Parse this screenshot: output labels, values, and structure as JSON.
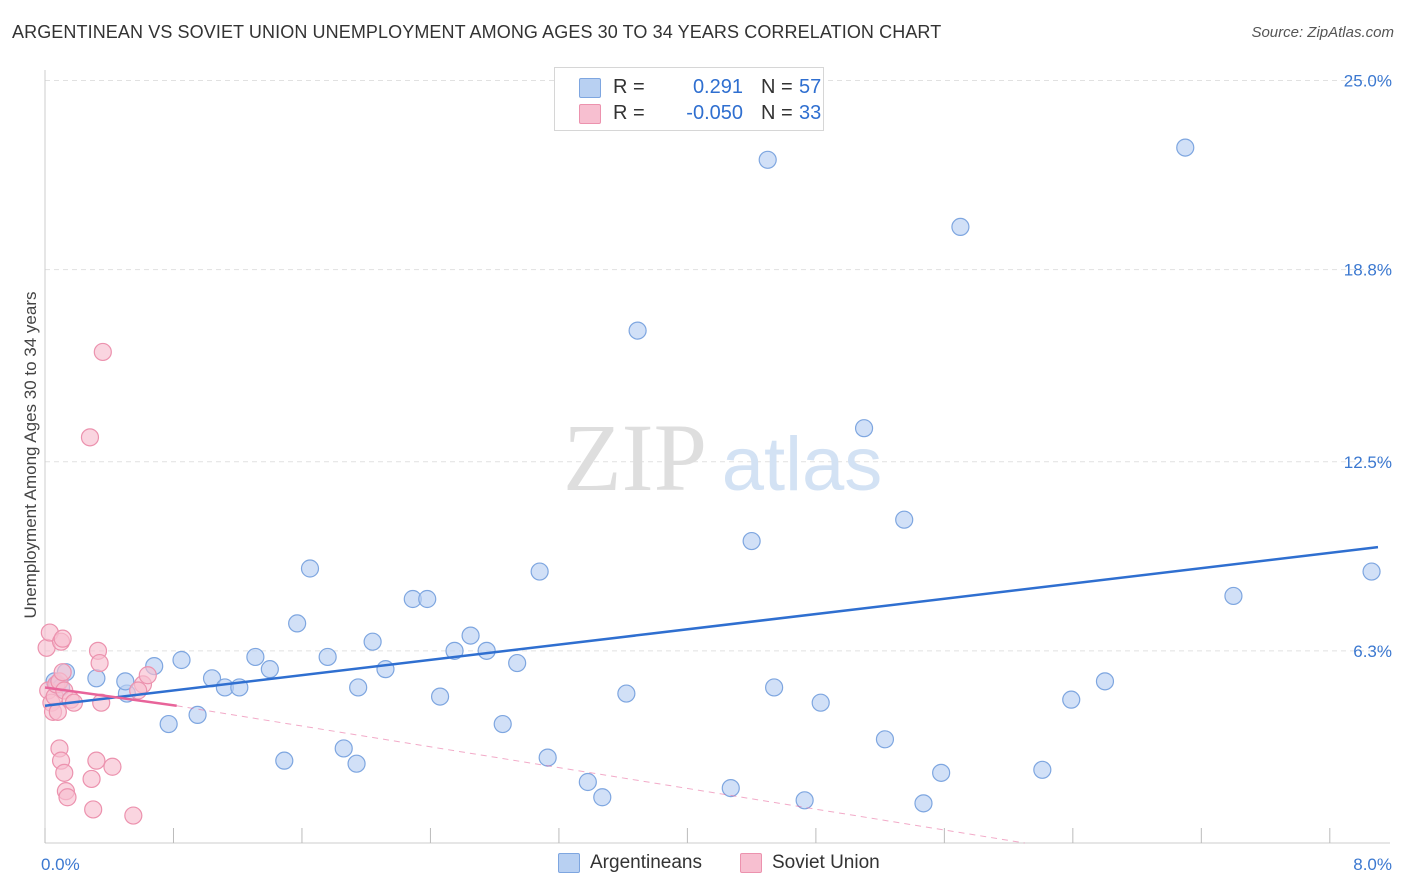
{
  "header": {
    "title": "ARGENTINEAN VS SOVIET UNION UNEMPLOYMENT AMONG AGES 30 TO 34 YEARS CORRELATION CHART",
    "source": "Source: ZipAtlas.com"
  },
  "watermark": {
    "zip": "ZIP",
    "atlas": "atlas"
  },
  "legend": {
    "rows": [
      {
        "r_label": "R =",
        "r_value": "0.291",
        "n_label": "N =",
        "n_value": "57"
      },
      {
        "r_label": "R =",
        "r_value": "-0.050",
        "n_label": "N =",
        "n_value": "33"
      }
    ]
  },
  "bottom_legend": {
    "series_a": "Argentineans",
    "series_b": "Soviet Union"
  },
  "colors": {
    "blue_fill": "#b8d0f2",
    "blue_stroke": "#7ea6e0",
    "blue_line": "#2f6fd0",
    "pink_fill": "#f7bfd0",
    "pink_stroke": "#ec92ae",
    "pink_line": "#e8649a",
    "axis_label": "#3b78d0",
    "grid": "#e1e1e1"
  },
  "chart_data": {
    "type": "scatter",
    "title": "ARGENTINEAN VS SOVIET UNION UNEMPLOYMENT AMONG AGES 30 TO 34 YEARS CORRELATION CHART",
    "xlabel": "",
    "ylabel": "Unemployment Among Ages 30 to 34 years",
    "xlim": [
      0,
      8
    ],
    "ylim": [
      0,
      25
    ],
    "x_tick_labels": [
      {
        "value": 0,
        "label": "0.0%"
      },
      {
        "value": 8,
        "label": "8.0%"
      }
    ],
    "y_tick_labels": [
      {
        "value": 6.3,
        "label": "6.3%"
      },
      {
        "value": 12.5,
        "label": "12.5%"
      },
      {
        "value": 18.8,
        "label": "18.8%"
      },
      {
        "value": 25.0,
        "label": "25.0%"
      }
    ],
    "grid": true,
    "legend_position": "top-center",
    "series": [
      {
        "name": "Argentineans",
        "r": 0.291,
        "n": 57,
        "points": [
          [
            0.06,
            5.3
          ],
          [
            0.08,
            5.2
          ],
          [
            0.13,
            5.6
          ],
          [
            0.1,
            5.1
          ],
          [
            0.32,
            5.4
          ],
          [
            0.51,
            4.9
          ],
          [
            0.68,
            5.8
          ],
          [
            0.77,
            3.9
          ],
          [
            0.85,
            6.0
          ],
          [
            0.95,
            4.2
          ],
          [
            1.04,
            5.4
          ],
          [
            1.12,
            5.1
          ],
          [
            1.21,
            5.1
          ],
          [
            1.31,
            6.1
          ],
          [
            1.4,
            5.7
          ],
          [
            1.49,
            2.7
          ],
          [
            1.57,
            7.2
          ],
          [
            1.65,
            9.0
          ],
          [
            1.76,
            6.1
          ],
          [
            1.86,
            3.1
          ],
          [
            1.94,
            2.6
          ],
          [
            1.95,
            5.1
          ],
          [
            2.04,
            6.6
          ],
          [
            2.12,
            5.7
          ],
          [
            2.29,
            8.0
          ],
          [
            2.38,
            8.0
          ],
          [
            2.46,
            4.8
          ],
          [
            2.55,
            6.3
          ],
          [
            2.65,
            6.8
          ],
          [
            2.75,
            6.3
          ],
          [
            2.85,
            3.9
          ],
          [
            2.94,
            5.9
          ],
          [
            3.08,
            8.9
          ],
          [
            3.13,
            2.8
          ],
          [
            3.38,
            2.0
          ],
          [
            3.47,
            1.5
          ],
          [
            3.62,
            4.9
          ],
          [
            3.69,
            16.8
          ],
          [
            4.27,
            1.8
          ],
          [
            4.4,
            9.9
          ],
          [
            4.5,
            22.4
          ],
          [
            4.54,
            5.1
          ],
          [
            4.73,
            1.4
          ],
          [
            4.83,
            4.6
          ],
          [
            5.1,
            13.6
          ],
          [
            5.23,
            3.4
          ],
          [
            5.35,
            10.6
          ],
          [
            5.47,
            1.3
          ],
          [
            5.58,
            2.3
          ],
          [
            5.7,
            20.2
          ],
          [
            6.21,
            2.4
          ],
          [
            6.39,
            4.7
          ],
          [
            6.6,
            5.3
          ],
          [
            7.1,
            22.8
          ],
          [
            7.4,
            8.1
          ],
          [
            8.26,
            8.9
          ],
          [
            0.5,
            5.3
          ]
        ],
        "trend": {
          "x": [
            0.0,
            8.3
          ],
          "y": [
            4.5,
            9.7
          ],
          "style": "solid"
        }
      },
      {
        "name": "Soviet Union",
        "r": -0.05,
        "n": 33,
        "points": [
          [
            0.01,
            6.4
          ],
          [
            0.02,
            5.0
          ],
          [
            0.03,
            6.9
          ],
          [
            0.04,
            4.6
          ],
          [
            0.05,
            4.3
          ],
          [
            0.06,
            4.8
          ],
          [
            0.07,
            5.2
          ],
          [
            0.08,
            4.3
          ],
          [
            0.09,
            5.3
          ],
          [
            0.1,
            6.6
          ],
          [
            0.11,
            6.7
          ],
          [
            0.11,
            5.6
          ],
          [
            0.12,
            5.0
          ],
          [
            0.09,
            3.1
          ],
          [
            0.1,
            2.7
          ],
          [
            0.12,
            2.3
          ],
          [
            0.13,
            1.7
          ],
          [
            0.14,
            1.5
          ],
          [
            0.16,
            4.7
          ],
          [
            0.18,
            4.6
          ],
          [
            0.28,
            13.3
          ],
          [
            0.29,
            2.1
          ],
          [
            0.3,
            1.1
          ],
          [
            0.32,
            2.7
          ],
          [
            0.33,
            6.3
          ],
          [
            0.34,
            5.9
          ],
          [
            0.35,
            4.6
          ],
          [
            0.36,
            16.1
          ],
          [
            0.42,
            2.5
          ],
          [
            0.55,
            0.9
          ],
          [
            0.61,
            5.2
          ],
          [
            0.64,
            5.5
          ],
          [
            0.58,
            5.0
          ]
        ],
        "trend": {
          "x": [
            0.0,
            0.82
          ],
          "y": [
            5.1,
            4.5
          ],
          "style": "solid"
        },
        "trend_extension": {
          "x": [
            0.82,
            6.1
          ],
          "y": [
            4.5,
            0.0
          ],
          "style": "dashed"
        }
      }
    ]
  }
}
